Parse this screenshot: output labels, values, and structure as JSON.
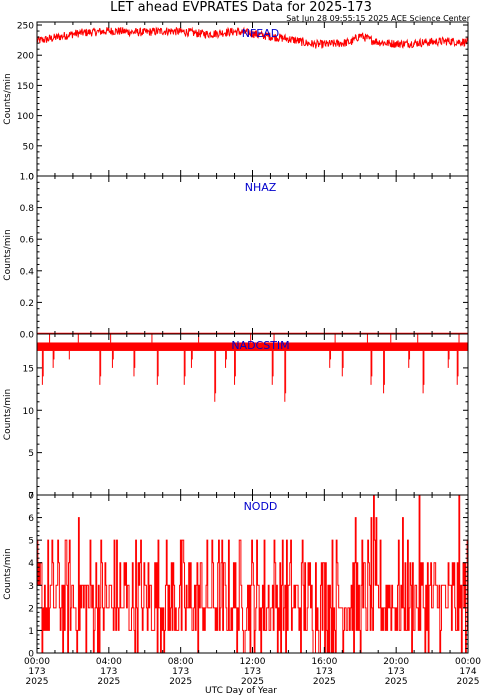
{
  "title": "LET ahead EVPRATES Data for 2025-173",
  "timestamp": "Sat Jun 28 09:55:15 2025 ACE Science Center",
  "xlabel": "UTC Day of Year",
  "colors": {
    "series": "#ff0000",
    "panel_label": "#0000cc",
    "axis": "#000000"
  },
  "chart_data": [
    {
      "type": "line",
      "panel_label": "NFEAD",
      "ylabel": "Counts/min",
      "ylim": [
        0,
        255
      ],
      "yticks": [
        0,
        50,
        100,
        150,
        200,
        250
      ],
      "xlim": [
        0,
        24
      ],
      "xticks": [
        0,
        4,
        8,
        12,
        16,
        20,
        24
      ],
      "x": [
        0,
        0.5,
        1,
        1.5,
        2,
        2.5,
        3,
        3.5,
        4,
        4.5,
        5,
        5.5,
        6,
        6.5,
        7,
        7.5,
        8,
        8.5,
        9,
        9.5,
        10,
        10.5,
        11,
        11.5,
        12,
        12.5,
        13,
        13.5,
        14,
        14.5,
        15,
        15.5,
        16,
        16.5,
        17,
        17.5,
        18,
        18.5,
        19,
        19.5,
        20,
        20.5,
        21,
        21.5,
        22,
        22.5,
        23,
        23.5,
        24
      ],
      "values": [
        224,
        226,
        229,
        232,
        235,
        237,
        238,
        239,
        240,
        240,
        239,
        238,
        238,
        239,
        240,
        240,
        239,
        238,
        236,
        235,
        236,
        238,
        239,
        238,
        236,
        233,
        231,
        229,
        227,
        224,
        220,
        218,
        218,
        219,
        220,
        222,
        233,
        226,
        222,
        220,
        219,
        219,
        220,
        221,
        222,
        223,
        223,
        222,
        222
      ]
    },
    {
      "type": "line",
      "panel_label": "NHAZ",
      "ylabel": "Counts/min",
      "ylim": [
        0,
        1
      ],
      "yticks": [
        0.0,
        0.2,
        0.4,
        0.6,
        0.8,
        1.0
      ],
      "ytick_labels": [
        "0.0",
        "0.2",
        "0.4",
        "0.6",
        "0.8",
        "1.0"
      ],
      "xlim": [
        0,
        24
      ],
      "xticks": [
        0,
        4,
        8,
        12,
        16,
        20,
        24
      ],
      "x": [
        0,
        24
      ],
      "values": [
        0,
        0
      ]
    },
    {
      "type": "line",
      "panel_label": "NADCSTIM",
      "ylabel": "Counts/min",
      "ylim": [
        0,
        19
      ],
      "yticks": [
        0,
        5,
        10,
        15
      ],
      "xlim": [
        0,
        24
      ],
      "xticks": [
        0,
        4,
        8,
        12,
        16,
        20,
        24
      ],
      "baseline_band": [
        17,
        18
      ],
      "spikes_up": [
        0.7,
        2.3,
        4.1,
        6.4,
        9.0,
        11.9,
        13.2,
        16.6,
        18.4,
        19.7,
        21.2,
        23.5
      ],
      "dips": [
        {
          "x": 0.3,
          "y": 13
        },
        {
          "x": 0.9,
          "y": 15
        },
        {
          "x": 1.8,
          "y": 16
        },
        {
          "x": 3.5,
          "y": 13
        },
        {
          "x": 4.2,
          "y": 15
        },
        {
          "x": 5.4,
          "y": 14
        },
        {
          "x": 6.7,
          "y": 13
        },
        {
          "x": 8.2,
          "y": 13
        },
        {
          "x": 8.6,
          "y": 15
        },
        {
          "x": 9.9,
          "y": 11
        },
        {
          "x": 10.5,
          "y": 15
        },
        {
          "x": 11.0,
          "y": 13
        },
        {
          "x": 13.1,
          "y": 13
        },
        {
          "x": 13.8,
          "y": 11
        },
        {
          "x": 16.3,
          "y": 15
        },
        {
          "x": 17.0,
          "y": 14
        },
        {
          "x": 18.6,
          "y": 13
        },
        {
          "x": 19.3,
          "y": 12
        },
        {
          "x": 20.7,
          "y": 15
        },
        {
          "x": 21.5,
          "y": 12
        },
        {
          "x": 22.9,
          "y": 15
        },
        {
          "x": 23.4,
          "y": 13
        }
      ]
    },
    {
      "type": "line",
      "panel_label": "NODD",
      "ylabel": "Counts/min",
      "ylim": [
        0,
        7
      ],
      "yticks": [
        0,
        1,
        2,
        3,
        4,
        5,
        6,
        7
      ],
      "xlim": [
        0,
        24
      ],
      "xticks": [
        0,
        4,
        8,
        12,
        16,
        20,
        24
      ],
      "level_distribution": {
        "min": 0,
        "max": 7,
        "typical_range": [
          1,
          4
        ]
      }
    }
  ],
  "xtick_labels": [
    {
      "time": "00:00",
      "doy": "173",
      "year": "2025"
    },
    {
      "time": "04:00",
      "doy": "173",
      "year": "2025"
    },
    {
      "time": "08:00",
      "doy": "173",
      "year": "2025"
    },
    {
      "time": "12:00",
      "doy": "173",
      "year": "2025"
    },
    {
      "time": "16:00",
      "doy": "173",
      "year": "2025"
    },
    {
      "time": "20:00",
      "doy": "173",
      "year": "2025"
    },
    {
      "time": "00:00",
      "doy": "174",
      "year": "2025"
    }
  ]
}
